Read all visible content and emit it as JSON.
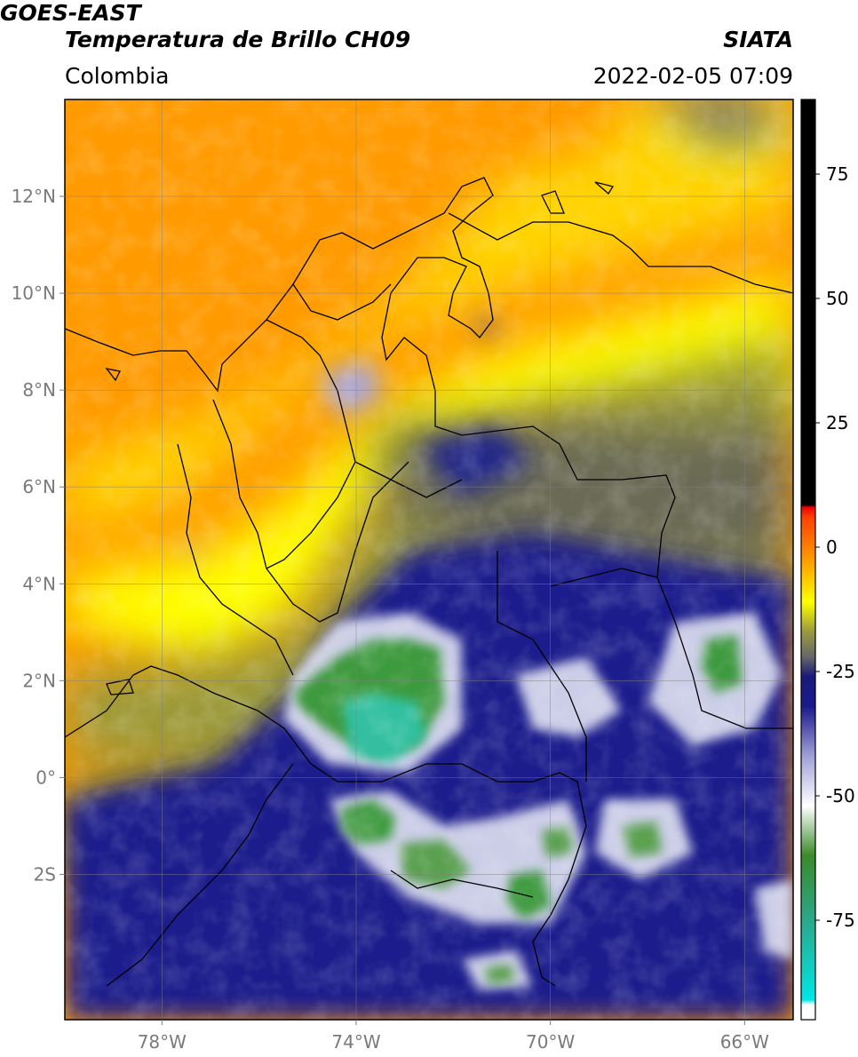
{
  "header": {
    "line1": "GOES-EAST",
    "line2": "Temperatura de Brillo CH09",
    "org": "SIATA",
    "region": "Colombia",
    "datetime": "2022-02-05 07:09"
  },
  "axes": {
    "lat_ticks": [
      {
        "value": 12,
        "label": "12°N"
      },
      {
        "value": 10,
        "label": "10°N"
      },
      {
        "value": 8,
        "label": "8°N"
      },
      {
        "value": 6,
        "label": "6°N"
      },
      {
        "value": 4,
        "label": "4°N"
      },
      {
        "value": 2,
        "label": "2°N"
      },
      {
        "value": 0,
        "label": "0°"
      },
      {
        "value": -2,
        "label": "2S"
      }
    ],
    "lon_ticks": [
      {
        "value": -78,
        "label": "78°W"
      },
      {
        "value": -74,
        "label": "74°W"
      },
      {
        "value": -70,
        "label": "70°W"
      },
      {
        "value": -66,
        "label": "66°W"
      }
    ],
    "lon_range": [
      -80.0,
      -65.0
    ],
    "lat_range": [
      -5.0,
      14.0
    ],
    "grid": true
  },
  "colorbar": {
    "ticks": [
      {
        "value": 75,
        "label": "75"
      },
      {
        "value": 50,
        "label": "50"
      },
      {
        "value": 25,
        "label": "25"
      },
      {
        "value": 0,
        "label": "0"
      },
      {
        "value": -25,
        "label": "-25"
      },
      {
        "value": -50,
        "label": "-50"
      },
      {
        "value": -75,
        "label": "-75"
      }
    ],
    "range": [
      -95,
      90
    ],
    "stops": [
      {
        "value": -95,
        "color": "#ffffff"
      },
      {
        "value": -92,
        "color": "#ffffff"
      },
      {
        "value": -91,
        "color": "#00e6e6"
      },
      {
        "value": -75,
        "color": "#2aa88a"
      },
      {
        "value": -62,
        "color": "#3a8a2a"
      },
      {
        "value": -52,
        "color": "#ffffff"
      },
      {
        "value": -42,
        "color": "#a0a0d8"
      },
      {
        "value": -32,
        "color": "#1a1a8c"
      },
      {
        "value": -26,
        "color": "#1a1a7a"
      },
      {
        "value": -22,
        "color": "#686868"
      },
      {
        "value": -17,
        "color": "#9a9a40"
      },
      {
        "value": -11,
        "color": "#ffff00"
      },
      {
        "value": -3,
        "color": "#ffa000"
      },
      {
        "value": 6,
        "color": "#ff4000"
      },
      {
        "value": 8,
        "color": "#ee0000"
      },
      {
        "value": 8.5,
        "color": "#000000"
      },
      {
        "value": 90,
        "color": "#000000"
      }
    ]
  },
  "colors": {
    "orange": "#ff9a00",
    "yellow": "#ffff00",
    "olive": "#8a8a35",
    "navy": "#1a1f8c",
    "white_cloud": "#e8e8f4",
    "green": "#3e9a3e",
    "teal": "#30c0a0"
  }
}
